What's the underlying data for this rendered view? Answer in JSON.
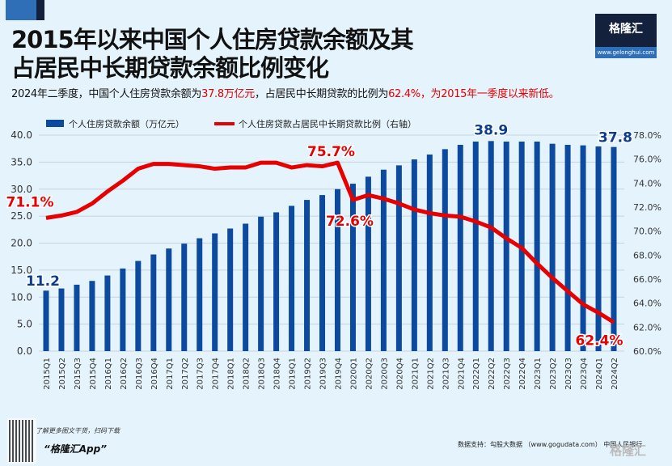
{
  "header": {
    "title_line1": "2015年以来中国个人住房贷款余额及其",
    "title_line2": "占居民中长期贷款余额比例变化",
    "subtitle_pre": "2024年二季度，中国个人住房贷款余额为",
    "subtitle_red1": "37.8万亿元",
    "subtitle_mid": "，占居民中长期贷款的比例为",
    "subtitle_red2": "62.4%，为2015年一季度以来新低。",
    "logo_name": "格隆汇",
    "logo_url": "www.gelonghui.com"
  },
  "footer": {
    "promo": "了解更多图文干货，扫码下载",
    "app": "“格隆汇App”",
    "source": "数据支持：勾股大数据 （www.gogudata.com） 中国人民银行",
    "watermark": "格隆汇"
  },
  "colors": {
    "bar": "#0b4a9e",
    "line": "#e60000",
    "background": "#e4f3fc"
  },
  "chart_data": {
    "type": "bar+line",
    "categories": [
      "2015Q1",
      "2015Q2",
      "2015Q3",
      "2015Q4",
      "2016Q1",
      "2016Q2",
      "2016Q3",
      "2016Q4",
      "2017Q1",
      "2017Q2",
      "2017Q3",
      "2017Q4",
      "2018Q1",
      "2018Q2",
      "2018Q3",
      "2018Q4",
      "2019Q1",
      "2019Q2",
      "2019Q3",
      "2019Q4",
      "2020Q1",
      "2020Q2",
      "2020Q3",
      "2020Q4",
      "2021Q1",
      "2021Q2",
      "2021Q3",
      "2021Q4",
      "2022Q1",
      "2022Q2",
      "2022Q3",
      "2022Q4",
      "2023Q1",
      "2023Q2",
      "2023Q3",
      "2023Q4",
      "2024Q1",
      "2024Q2"
    ],
    "series": [
      {
        "name": "个人住房贷款余额（万亿元）",
        "type": "bar",
        "axis": "left",
        "values": [
          11.2,
          11.6,
          12.3,
          13.0,
          14.0,
          15.3,
          16.7,
          17.9,
          19.0,
          19.9,
          20.9,
          21.8,
          22.7,
          23.6,
          24.9,
          25.7,
          26.9,
          28.0,
          28.9,
          30.0,
          31.0,
          32.3,
          33.6,
          34.4,
          35.5,
          36.4,
          37.4,
          38.2,
          38.8,
          38.9,
          38.8,
          38.8,
          38.8,
          38.4,
          38.2,
          38.1,
          37.9,
          37.8
        ]
      },
      {
        "name": "个人住房贷款占居民中长期贷款比例（右轴）",
        "type": "line",
        "axis": "right",
        "values": [
          71.1,
          71.3,
          71.6,
          72.3,
          73.3,
          74.2,
          75.2,
          75.6,
          75.6,
          75.5,
          75.4,
          75.2,
          75.3,
          75.3,
          75.7,
          75.7,
          75.3,
          75.5,
          75.4,
          75.7,
          72.6,
          73.0,
          72.7,
          72.3,
          71.8,
          71.5,
          71.3,
          71.2,
          70.8,
          70.3,
          69.4,
          68.6,
          67.3,
          66.1,
          65.0,
          63.9,
          63.2,
          62.4
        ]
      }
    ],
    "y_left": {
      "range": [
        0,
        40
      ],
      "ticks": [
        "0.0",
        "5.0",
        "10.0",
        "15.0",
        "20.0",
        "25.0",
        "30.0",
        "35.0",
        "40.0"
      ]
    },
    "y_right": {
      "range": [
        60,
        78
      ],
      "ticks": [
        "60.0%",
        "62.0%",
        "64.0%",
        "66.0%",
        "68.0%",
        "70.0%",
        "72.0%",
        "74.0%",
        "76.0%",
        "78.0%"
      ]
    },
    "bar_labels": [
      {
        "index": 0,
        "text": "11.2"
      },
      {
        "index": 29,
        "text": "38.9"
      },
      {
        "index": 37,
        "text": "37.8"
      }
    ],
    "line_labels": [
      {
        "index": 0,
        "text": "71.1%"
      },
      {
        "index": 19,
        "text": "75.7%"
      },
      {
        "index": 20,
        "text": "72.6%"
      },
      {
        "index": 37,
        "text": "62.4%"
      }
    ],
    "grid": true,
    "legend": "top"
  }
}
